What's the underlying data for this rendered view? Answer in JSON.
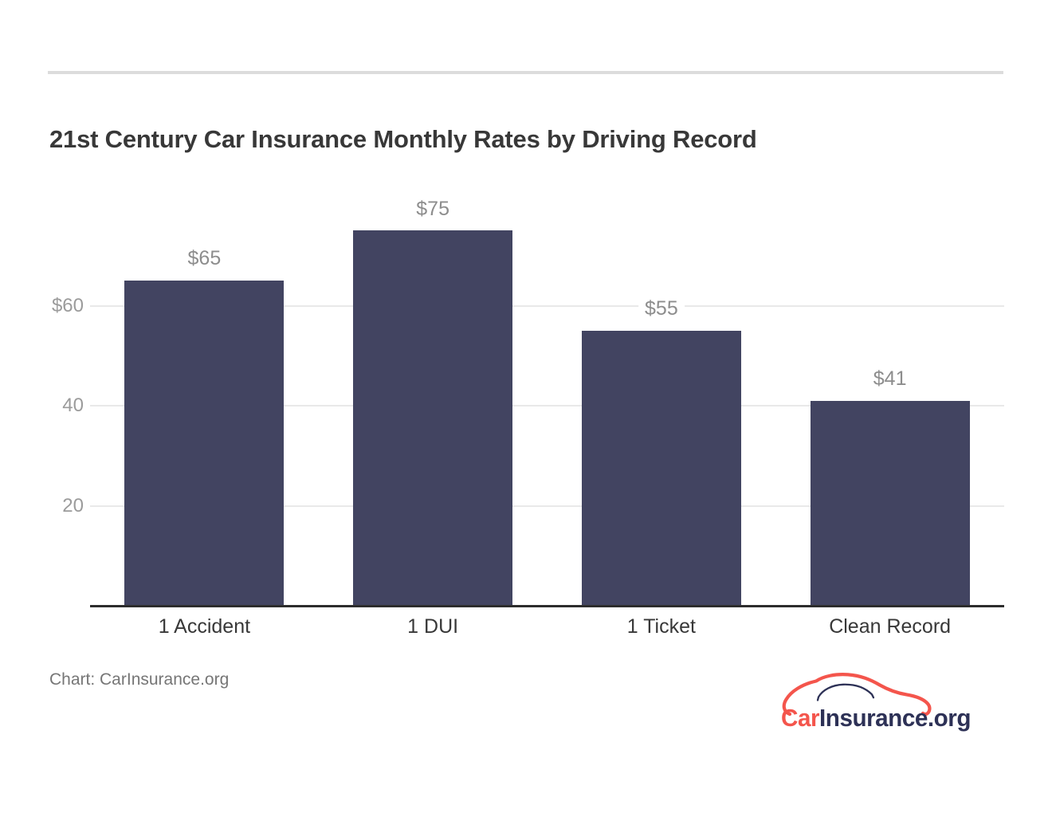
{
  "header": {
    "title": "21st Century Car Insurance Monthly Rates by Driving Record"
  },
  "chart_data": {
    "type": "bar",
    "title": "21st Century Car Insurance Monthly Rates by Driving Record",
    "categories": [
      "1 Accident",
      "1 DUI",
      "1 Ticket",
      "Clean Record"
    ],
    "values": [
      65,
      75,
      55,
      41
    ],
    "value_labels": [
      "$65",
      "$75",
      "$55",
      "$41"
    ],
    "xlabel": "",
    "ylabel": "",
    "ylim": [
      0,
      80
    ],
    "yticks": [
      {
        "value": 60,
        "label": "$60"
      },
      {
        "value": 40,
        "label": "40"
      },
      {
        "value": 20,
        "label": "20"
      }
    ],
    "grid": "horizontal-only",
    "legend": "none",
    "bar_color": "#424461",
    "units": "USD per month"
  },
  "footer": {
    "source_caption": "Chart: CarInsurance.org",
    "logo": {
      "text_car": "Car",
      "text_rest": "Insurance.org",
      "car_color": "#f4554c",
      "rest_color": "#2d3156"
    }
  },
  "colors": {
    "background": "#ffffff",
    "divider": "#dcdcdc",
    "gridline": "#e9e9e9",
    "axis_line": "#2d2d2d",
    "title_text": "#383838",
    "tick_text": "#9b9b9b",
    "value_label_text": "#8d8d8d",
    "category_text": "#383838",
    "caption_text": "#767676"
  }
}
